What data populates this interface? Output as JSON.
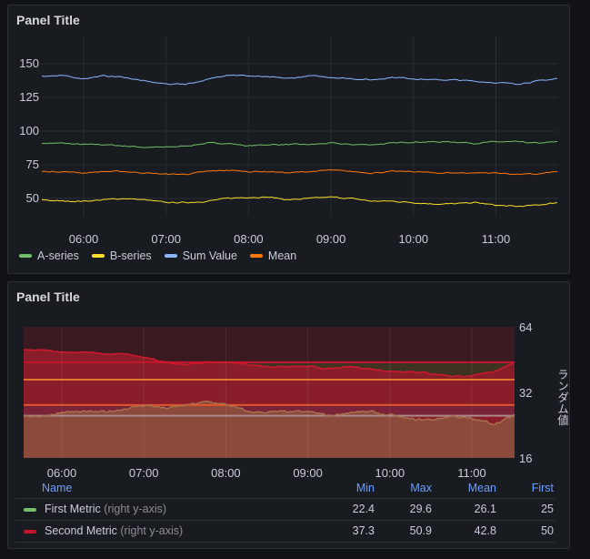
{
  "panels": [
    {
      "title": "Panel Title"
    },
    {
      "title": "Panel Title"
    }
  ],
  "chart_data": [
    {
      "type": "line",
      "title": "Panel Title",
      "x_start": "05:30",
      "x_step_minutes": 15,
      "x_ticks": [
        "06:00",
        "07:00",
        "08:00",
        "09:00",
        "10:00",
        "11:00"
      ],
      "y_ticks": [
        50,
        75,
        100,
        125,
        150
      ],
      "ylim": [
        40,
        160
      ],
      "grid": true,
      "legend": "bottom-left",
      "series": [
        {
          "name": "A-series",
          "color": "#73bf69",
          "values": [
            91,
            91,
            90,
            90,
            89,
            88,
            88,
            89,
            91,
            91,
            89,
            90,
            90,
            90,
            91,
            90,
            90,
            91,
            92,
            92,
            92,
            91,
            92,
            92,
            91,
            92
          ]
        },
        {
          "name": "B-series",
          "color": "#fade2a",
          "values": [
            49,
            48,
            48,
            49,
            50,
            49,
            47,
            47,
            48,
            50,
            51,
            51,
            49,
            50,
            51,
            50,
            48,
            48,
            47,
            46,
            46,
            47,
            45,
            44,
            45,
            47
          ]
        },
        {
          "name": "Sum Value",
          "color": "#8ab8ff",
          "values": [
            141,
            141,
            139,
            141,
            140,
            137,
            135,
            135,
            138,
            142,
            141,
            140,
            139,
            141,
            140,
            139,
            138,
            140,
            139,
            138,
            138,
            137,
            136,
            135,
            137,
            139
          ]
        },
        {
          "name": "Mean",
          "color": "#ff780a",
          "values": [
            70,
            70,
            69,
            70,
            70,
            69,
            68,
            68,
            70,
            71,
            70,
            70,
            69,
            70,
            71,
            70,
            69,
            70,
            70,
            69,
            69,
            69,
            69,
            68,
            68,
            70
          ]
        }
      ]
    },
    {
      "type": "area",
      "title": "Panel Title",
      "x_start": "05:32",
      "x_step_minutes": 15,
      "x_ticks": [
        "06:00",
        "07:00",
        "08:00",
        "09:00",
        "10:00",
        "11:00"
      ],
      "y_ticks": [
        16,
        32,
        64
      ],
      "ylim": [
        16,
        64
      ],
      "y_scale": "log2",
      "ylabel": "ランダム値",
      "y_axis": "right",
      "thresholds": [
        {
          "value": 44,
          "color": "#c4162a"
        },
        {
          "value": 36.6,
          "color": "#e0752d"
        },
        {
          "value": 28,
          "color": "#e0552d"
        },
        {
          "value": 25,
          "color": "#a88a8a"
        }
      ],
      "series": [
        {
          "name": "First Metric",
          "axis_note": "(right y-axis)",
          "color": "#73bf69",
          "line": "#a8704c",
          "values": [
            25,
            25,
            26,
            26,
            26,
            27,
            28,
            27,
            28,
            29,
            28,
            26,
            26,
            26,
            26,
            25,
            26,
            26,
            25,
            24,
            24,
            25,
            24,
            23,
            25
          ],
          "min": "22.4",
          "max": "29.6",
          "mean": "26.1",
          "first": "25"
        },
        {
          "name": "Second Metric",
          "axis_note": "(right y-axis)",
          "color": "#c4162a",
          "line": "#d0182e",
          "values": [
            50,
            50,
            49,
            49,
            48,
            48,
            46,
            44,
            43,
            44,
            44,
            43,
            42,
            42,
            42,
            41,
            42,
            41,
            40,
            40,
            39,
            38,
            38,
            40,
            44
          ],
          "min": "37.3",
          "max": "50.9",
          "mean": "42.8",
          "first": "50"
        }
      ],
      "legend_columns": [
        "Name",
        "Min",
        "Max",
        "Mean",
        "First"
      ]
    }
  ]
}
